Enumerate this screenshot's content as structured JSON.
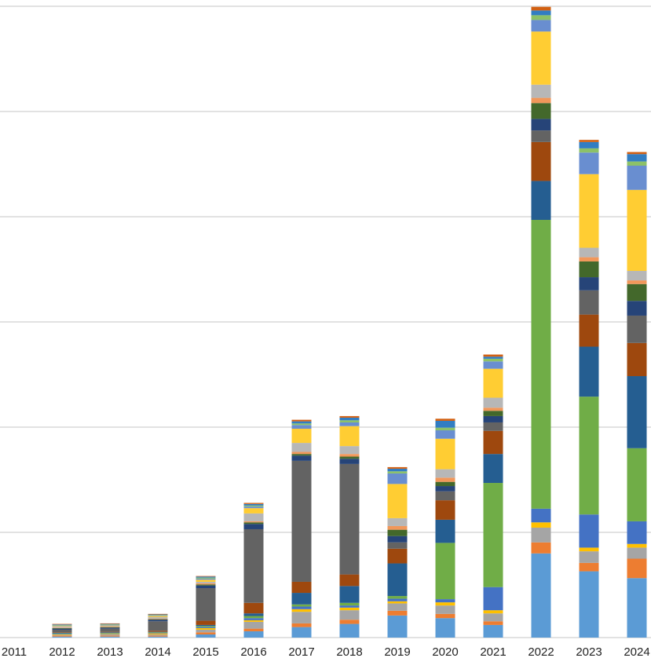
{
  "chart_data": {
    "type": "bar",
    "stacked": true,
    "categories": [
      "2011",
      "2012",
      "2013",
      "2014",
      "2015",
      "2016",
      "2017",
      "2018",
      "2019",
      "2020",
      "2021",
      "2022",
      "2023",
      "2024"
    ],
    "ylim": [
      0,
      12
    ],
    "yticks_drawn_as_gridlines": [
      2,
      4,
      6,
      8,
      10,
      12
    ],
    "ytick_labels_visible": false,
    "grid": true,
    "legend": "none",
    "segment_colors": [
      "#5B9BD5",
      "#ED7D31",
      "#A5A5A5",
      "#FFC000",
      "#4472C4",
      "#70AD47",
      "#255E91",
      "#9E480E",
      "#636363",
      "#264478",
      "#43682B",
      "#F1975A",
      "#B7B7B7",
      "#FFCD33",
      "#698ED0",
      "#8CC168",
      "#327DC2",
      "#D26012"
    ],
    "series": [
      {
        "values": [
          0,
          0.02,
          0.02,
          0.02,
          0.06,
          0.12,
          0.2,
          0.26,
          0.42,
          0.37,
          0.24,
          1.6,
          1.26,
          1.13
        ]
      },
      {
        "values": [
          0,
          0.02,
          0.02,
          0.02,
          0.04,
          0.05,
          0.07,
          0.08,
          0.09,
          0.08,
          0.07,
          0.21,
          0.16,
          0.37
        ]
      },
      {
        "values": [
          0,
          0.01,
          0.02,
          0.02,
          0.05,
          0.13,
          0.22,
          0.18,
          0.14,
          0.16,
          0.15,
          0.28,
          0.22,
          0.21
        ]
      },
      {
        "values": [
          0,
          0.01,
          0.01,
          0.02,
          0.03,
          0.03,
          0.05,
          0.05,
          0.04,
          0.06,
          0.06,
          0.1,
          0.07,
          0.07
        ]
      },
      {
        "values": [
          0,
          0.01,
          0.01,
          0.01,
          0.02,
          0.04,
          0.05,
          0.04,
          0.05,
          0.06,
          0.44,
          0.26,
          0.63,
          0.43
        ]
      },
      {
        "values": [
          0,
          0.01,
          0.01,
          0.01,
          0.02,
          0.04,
          0.04,
          0.05,
          0.05,
          1.07,
          1.98,
          5.49,
          2.24,
          1.39
        ]
      },
      {
        "values": [
          0,
          0.01,
          0.01,
          0.01,
          0.02,
          0.05,
          0.22,
          0.32,
          0.62,
          0.44,
          0.55,
          0.74,
          0.95,
          1.37
        ]
      },
      {
        "values": [
          0,
          0.01,
          0.01,
          0.02,
          0.08,
          0.2,
          0.21,
          0.22,
          0.28,
          0.37,
          0.44,
          0.74,
          0.61,
          0.63
        ]
      },
      {
        "values": [
          0,
          0.05,
          0.06,
          0.18,
          0.62,
          1.4,
          2.3,
          2.1,
          0.12,
          0.17,
          0.16,
          0.22,
          0.46,
          0.52
        ]
      },
      {
        "values": [
          0,
          0.02,
          0.02,
          0.03,
          0.05,
          0.1,
          0.1,
          0.1,
          0.12,
          0.1,
          0.12,
          0.22,
          0.25,
          0.28
        ]
      },
      {
        "values": [
          0,
          0.01,
          0.01,
          0.01,
          0.02,
          0.03,
          0.03,
          0.04,
          0.12,
          0.08,
          0.1,
          0.3,
          0.3,
          0.32
        ]
      },
      {
        "values": [
          0,
          0.01,
          0.01,
          0.01,
          0.02,
          0.02,
          0.04,
          0.05,
          0.07,
          0.08,
          0.06,
          0.1,
          0.08,
          0.07
        ]
      },
      {
        "values": [
          0,
          0.02,
          0.01,
          0.03,
          0.03,
          0.15,
          0.17,
          0.15,
          0.15,
          0.16,
          0.19,
          0.25,
          0.18,
          0.18
        ]
      },
      {
        "values": [
          0,
          0.01,
          0.01,
          0.02,
          0.04,
          0.1,
          0.27,
          0.38,
          0.65,
          0.58,
          0.55,
          1.01,
          1.4,
          1.54
        ]
      },
      {
        "values": [
          0,
          0.01,
          0.01,
          0.01,
          0.02,
          0.03,
          0.07,
          0.07,
          0.2,
          0.16,
          0.14,
          0.22,
          0.41,
          0.46
        ]
      },
      {
        "values": [
          0,
          0.01,
          0.01,
          0.01,
          0.02,
          0.02,
          0.03,
          0.04,
          0.04,
          0.05,
          0.05,
          0.09,
          0.08,
          0.08
        ]
      },
      {
        "values": [
          0,
          0.01,
          0.01,
          0.01,
          0.02,
          0.03,
          0.04,
          0.05,
          0.05,
          0.13,
          0.04,
          0.09,
          0.12,
          0.14
        ]
      },
      {
        "values": [
          0,
          0.01,
          0.01,
          0.01,
          0.01,
          0.02,
          0.03,
          0.03,
          0.03,
          0.04,
          0.04,
          0.07,
          0.04,
          0.04
        ]
      }
    ]
  }
}
